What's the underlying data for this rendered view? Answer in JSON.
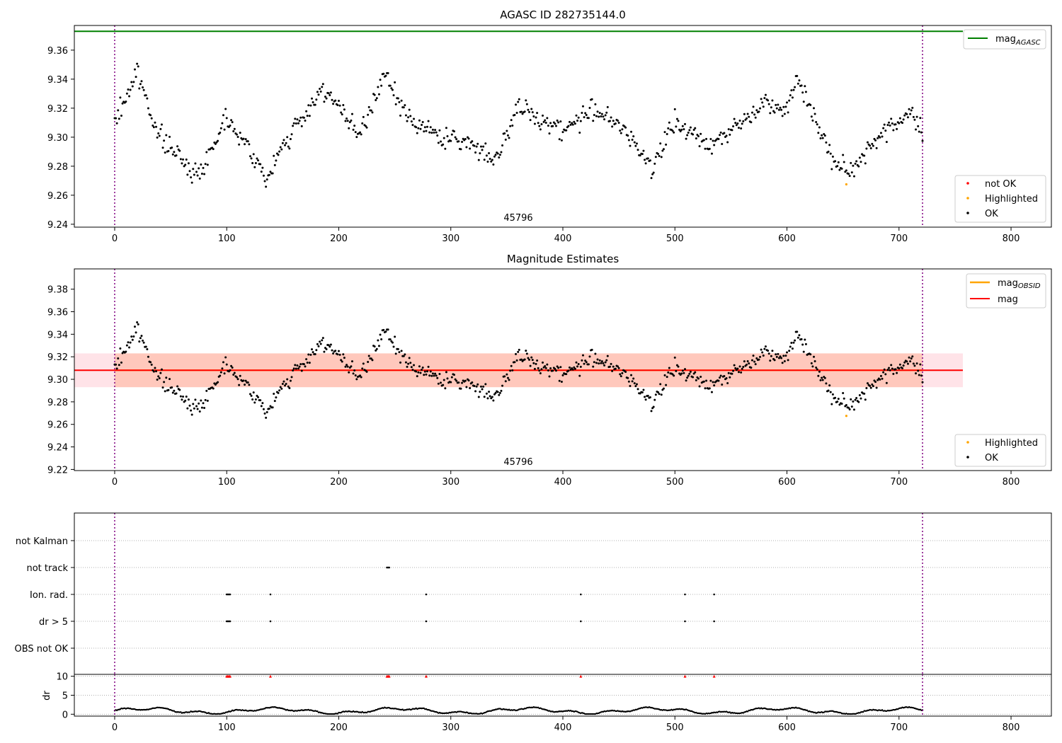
{
  "figure": {
    "top_title": "AGASC ID 282735144.0",
    "middle_title": "Magnitude Estimates",
    "obsid_label": "45796"
  },
  "colors": {
    "ok": "#000000",
    "not_ok": "#ff0000",
    "highlighted": "#ffa500",
    "mag_agasc": "#008000",
    "mag_obsid": "#ffa500",
    "mag": "#ff0000",
    "boundary": "#800080",
    "band_mag": "#ffc0cb",
    "band_obsid": "#ffa07a"
  },
  "chart_data": [
    {
      "type": "scatter",
      "title": "AGASC ID 282735144.0",
      "xlim": [
        -36,
        836
      ],
      "ylim": [
        9.238,
        9.377
      ],
      "xticks": [
        0,
        100,
        200,
        300,
        400,
        500,
        600,
        700,
        800
      ],
      "yticks": [
        "9.24",
        "9.26",
        "9.28",
        "9.30",
        "9.32",
        "9.34",
        "9.36"
      ],
      "obsid_boundaries": [
        0,
        721
      ],
      "mag_agasc": 9.373,
      "mag_agasc_x_range": [
        -36,
        757
      ],
      "legend_upper": [
        "mag_AGASC"
      ],
      "legend_lower": [
        "not OK",
        "Highlighted",
        "OK"
      ],
      "highlighted_point": {
        "x": 653,
        "y": 9.2675
      },
      "series_ok_key_points": [
        [
          0,
          9.31
        ],
        [
          20,
          9.345
        ],
        [
          40,
          9.3
        ],
        [
          75,
          9.273
        ],
        [
          100,
          9.315
        ],
        [
          125,
          9.285
        ],
        [
          137,
          9.27
        ],
        [
          150,
          9.295
        ],
        [
          170,
          9.315
        ],
        [
          185,
          9.335
        ],
        [
          200,
          9.32
        ],
        [
          220,
          9.3
        ],
        [
          240,
          9.344
        ],
        [
          260,
          9.315
        ],
        [
          290,
          9.3
        ],
        [
          320,
          9.295
        ],
        [
          340,
          9.285
        ],
        [
          360,
          9.32
        ],
        [
          400,
          9.305
        ],
        [
          430,
          9.32
        ],
        [
          460,
          9.3
        ],
        [
          480,
          9.28
        ],
        [
          500,
          9.31
        ],
        [
          530,
          9.295
        ],
        [
          560,
          9.31
        ],
        [
          580,
          9.325
        ],
        [
          600,
          9.32
        ],
        [
          610,
          9.341
        ],
        [
          640,
          9.285
        ],
        [
          655,
          9.275
        ],
        [
          680,
          9.3
        ],
        [
          700,
          9.31
        ],
        [
          710,
          9.32
        ],
        [
          721,
          9.3
        ]
      ]
    },
    {
      "type": "scatter",
      "title": "Magnitude Estimates",
      "xlim": [
        -36,
        836
      ],
      "ylim": [
        9.219,
        9.398
      ],
      "xticks": [
        0,
        100,
        200,
        300,
        400,
        500,
        600,
        700,
        800
      ],
      "yticks": [
        "9.22",
        "9.24",
        "9.26",
        "9.28",
        "9.30",
        "9.32",
        "9.34",
        "9.36",
        "9.38"
      ],
      "obsid_boundaries": [
        0,
        721
      ],
      "mag": 9.308,
      "mag_band": [
        9.293,
        9.323
      ],
      "mag_band_x_range": [
        -36,
        757
      ],
      "mag_obsid": 9.308,
      "mag_obsid_band": [
        9.293,
        9.323
      ],
      "mag_obsid_x_range": [
        0,
        721
      ],
      "legend_upper": [
        "mag_OBSID",
        "mag"
      ],
      "legend_lower": [
        "Highlighted",
        "OK"
      ],
      "highlighted_point": {
        "x": 653,
        "y": 9.2675
      }
    },
    {
      "type": "scatter",
      "title": "",
      "xlim": [
        -36,
        836
      ],
      "flag_categories": [
        "not Kalman",
        "not track",
        "Ion. rad.",
        "dr > 5",
        "OBS not OK"
      ],
      "flags": {
        "not Kalman": [],
        "not track": [
          243,
          244,
          245
        ],
        "Ion. rad.": [
          100,
          101,
          102,
          103,
          139,
          278,
          416,
          509,
          535
        ],
        "dr > 5": [
          100,
          101,
          102,
          103,
          139,
          278,
          416,
          509,
          535
        ],
        "OBS not OK": []
      },
      "obsid_boundaries": [
        0,
        721
      ]
    },
    {
      "type": "scatter",
      "title": "",
      "ylabel": "dr",
      "xlim": [
        -36,
        836
      ],
      "ylim": [
        -0.5,
        10.5
      ],
      "xticks": [
        0,
        100,
        200,
        300,
        400,
        500,
        600,
        700,
        800
      ],
      "yticks": [
        "0",
        "5",
        "10"
      ],
      "clipped_at_10": [
        100,
        101,
        102,
        103,
        139,
        243,
        244,
        245,
        278,
        416,
        509,
        535
      ],
      "obsid_boundaries": [
        0,
        721
      ],
      "dr_typical_range": [
        0,
        2
      ]
    }
  ]
}
